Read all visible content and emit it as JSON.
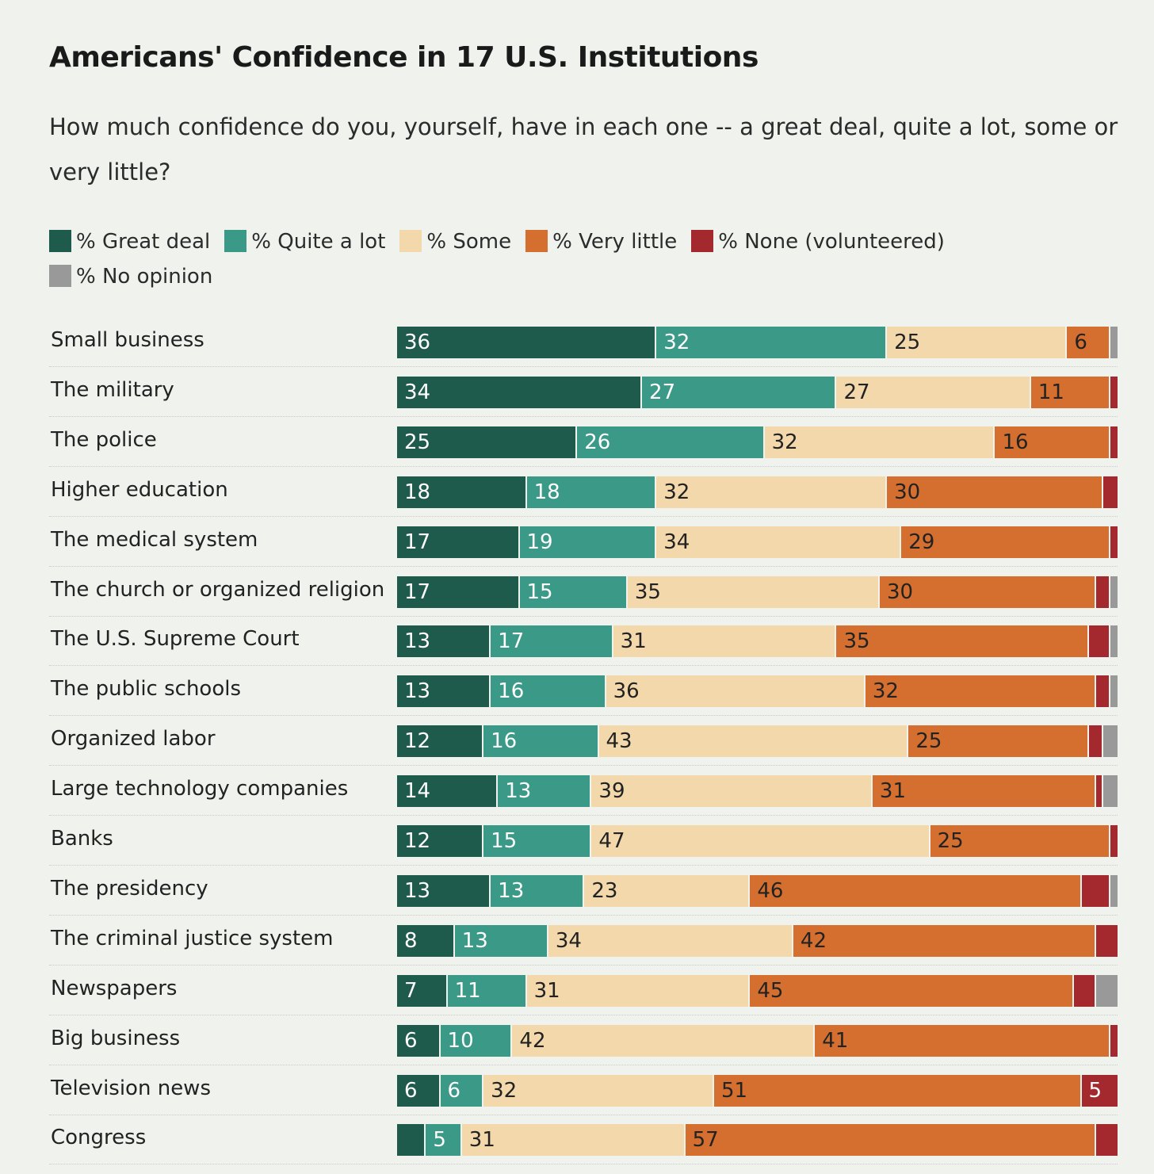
{
  "title": "Americans' Confidence in 17 U.S. Institutions",
  "subtitle": "How much confidence do you, yourself, have in each one -- a great deal, quite a lot, some or very little?",
  "chart_data": {
    "type": "bar",
    "stacked": true,
    "orientation": "horizontal",
    "xlim": [
      0,
      100
    ],
    "legend_position": "top",
    "categories": [
      "Small business",
      "The military",
      "The police",
      "Higher education",
      "The medical system",
      "The church or organized religion",
      "The U.S. Supreme Court",
      "The public schools",
      "Organized labor",
      "Large technology companies",
      "Banks",
      "The presidency",
      "The criminal justice system",
      "Newspapers",
      "Big business",
      "Television news",
      "Congress"
    ],
    "series": [
      {
        "name": "% Great deal",
        "color": "#1f5b4d",
        "label_color": "#ffffff",
        "values": [
          36,
          34,
          25,
          18,
          17,
          17,
          13,
          13,
          12,
          14,
          12,
          13,
          8,
          7,
          6,
          6,
          4
        ]
      },
      {
        "name": "% Quite a lot",
        "color": "#3b9987",
        "label_color": "#ffffff",
        "values": [
          32,
          27,
          26,
          18,
          19,
          15,
          17,
          16,
          16,
          13,
          15,
          13,
          13,
          11,
          10,
          6,
          5
        ]
      },
      {
        "name": "% Some",
        "color": "#f3d8ab",
        "label_color": "#222222",
        "values": [
          25,
          27,
          32,
          32,
          34,
          35,
          31,
          36,
          43,
          39,
          47,
          23,
          34,
          31,
          42,
          32,
          31
        ]
      },
      {
        "name": "% Very little",
        "color": "#d46f30",
        "label_color": "#222222",
        "values": [
          6,
          11,
          16,
          30,
          29,
          30,
          35,
          32,
          25,
          31,
          25,
          46,
          42,
          45,
          41,
          51,
          57
        ]
      },
      {
        "name": "% None (volunteered)",
        "color": "#a3292e",
        "label_color": "#ffffff",
        "values": [
          0,
          1,
          1,
          2,
          1,
          2,
          3,
          2,
          2,
          1,
          1,
          4,
          3,
          3,
          1,
          5,
          3
        ]
      },
      {
        "name": "% No opinion",
        "color": "#999999",
        "label_color": "#ffffff",
        "values": [
          1,
          0,
          0,
          0,
          0,
          1,
          1,
          1,
          2,
          2,
          0,
          1,
          0,
          3,
          0,
          0,
          0
        ]
      }
    ]
  }
}
